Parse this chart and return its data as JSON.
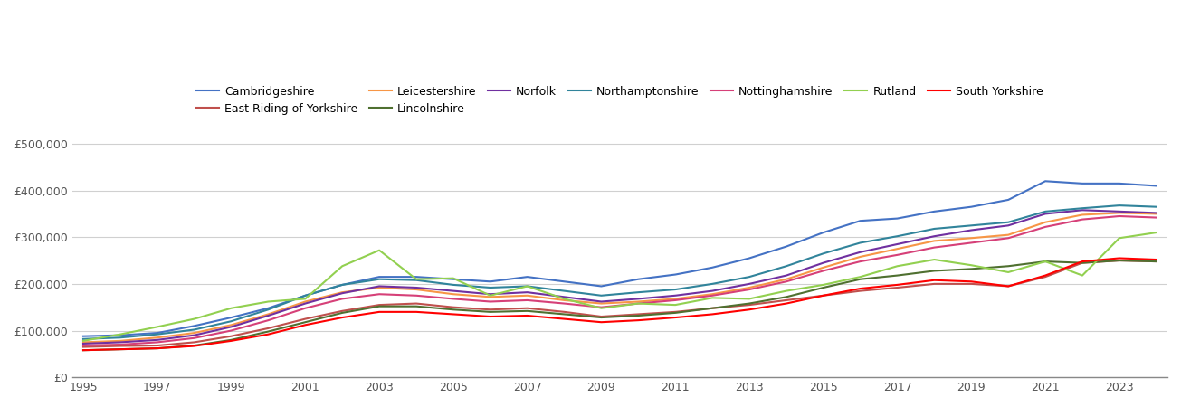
{
  "series": {
    "Cambridgeshire": {
      "color": "#4472C4",
      "values": [
        88000,
        90000,
        95000,
        110000,
        128000,
        148000,
        175000,
        198000,
        215000,
        215000,
        210000,
        205000,
        215000,
        205000,
        195000,
        210000,
        220000,
        235000,
        255000,
        280000,
        310000,
        335000,
        340000,
        355000,
        365000,
        380000,
        420000,
        415000,
        415000,
        410000
      ]
    },
    "East Riding of Yorkshire": {
      "color": "#C0504D",
      "values": [
        65000,
        67000,
        68000,
        75000,
        88000,
        105000,
        125000,
        142000,
        155000,
        158000,
        150000,
        145000,
        148000,
        140000,
        130000,
        135000,
        140000,
        148000,
        155000,
        165000,
        175000,
        185000,
        192000,
        200000,
        200000,
        195000,
        215000,
        245000,
        250000,
        248000
      ]
    },
    "Leicestershire": {
      "color": "#F79646",
      "values": [
        75000,
        78000,
        85000,
        95000,
        112000,
        135000,
        162000,
        182000,
        192000,
        188000,
        178000,
        172000,
        175000,
        165000,
        158000,
        162000,
        168000,
        178000,
        192000,
        210000,
        235000,
        258000,
        275000,
        292000,
        298000,
        305000,
        332000,
        348000,
        352000,
        350000
      ]
    },
    "Lincolnshire": {
      "color": "#4F7030",
      "values": [
        58000,
        60000,
        62000,
        68000,
        80000,
        98000,
        118000,
        138000,
        152000,
        152000,
        145000,
        140000,
        142000,
        135000,
        128000,
        132000,
        138000,
        148000,
        158000,
        172000,
        192000,
        210000,
        218000,
        228000,
        232000,
        238000,
        248000,
        245000,
        250000,
        248000
      ]
    },
    "Norfolk": {
      "color": "#7030A0",
      "values": [
        72000,
        75000,
        80000,
        90000,
        108000,
        132000,
        158000,
        180000,
        195000,
        192000,
        185000,
        178000,
        182000,
        172000,
        162000,
        168000,
        175000,
        185000,
        200000,
        218000,
        245000,
        268000,
        285000,
        302000,
        315000,
        325000,
        350000,
        358000,
        355000,
        352000
      ]
    },
    "Northamptonshire": {
      "color": "#31849B",
      "values": [
        82000,
        85000,
        92000,
        102000,
        120000,
        145000,
        175000,
        198000,
        210000,
        208000,
        198000,
        192000,
        195000,
        185000,
        175000,
        182000,
        188000,
        200000,
        215000,
        238000,
        265000,
        288000,
        302000,
        318000,
        325000,
        332000,
        355000,
        362000,
        368000,
        365000
      ]
    },
    "Nottinghamshire": {
      "color": "#D64078",
      "values": [
        68000,
        70000,
        75000,
        84000,
        100000,
        122000,
        148000,
        168000,
        178000,
        175000,
        168000,
        162000,
        165000,
        158000,
        150000,
        158000,
        165000,
        175000,
        188000,
        205000,
        228000,
        248000,
        262000,
        278000,
        288000,
        298000,
        322000,
        338000,
        345000,
        342000
      ]
    },
    "Rutland": {
      "color": "#92D050",
      "values": [
        78000,
        92000,
        108000,
        125000,
        148000,
        162000,
        168000,
        238000,
        272000,
        210000,
        212000,
        175000,
        195000,
        168000,
        148000,
        158000,
        155000,
        170000,
        168000,
        185000,
        198000,
        215000,
        238000,
        252000,
        240000,
        225000,
        248000,
        218000,
        298000,
        310000
      ]
    },
    "South Yorkshire": {
      "color": "#FF0000",
      "values": [
        58000,
        60000,
        62000,
        67000,
        78000,
        92000,
        112000,
        128000,
        140000,
        140000,
        135000,
        130000,
        132000,
        125000,
        118000,
        122000,
        128000,
        135000,
        145000,
        158000,
        175000,
        190000,
        198000,
        208000,
        205000,
        195000,
        218000,
        248000,
        255000,
        252000
      ]
    }
  },
  "years": [
    1995,
    1996,
    1997,
    1998,
    1999,
    2000,
    2001,
    2002,
    2003,
    2004,
    2005,
    2006,
    2007,
    2008,
    2009,
    2010,
    2011,
    2012,
    2013,
    2014,
    2015,
    2016,
    2017,
    2018,
    2019,
    2020,
    2021,
    2022,
    2023,
    2024
  ],
  "ylim": [
    0,
    530000
  ],
  "yticks": [
    0,
    100000,
    200000,
    300000,
    400000,
    500000
  ],
  "xticks": [
    1995,
    1997,
    1999,
    2001,
    2003,
    2005,
    2007,
    2009,
    2011,
    2013,
    2015,
    2017,
    2019,
    2021,
    2023
  ],
  "background_color": "#ffffff",
  "grid_color": "#d0d0d0",
  "legend_order": [
    "Cambridgeshire",
    "East Riding of Yorkshire",
    "Leicestershire",
    "Lincolnshire",
    "Norfolk",
    "Northamptonshire",
    "Nottinghamshire",
    "Rutland",
    "South Yorkshire"
  ],
  "legend_ncol_row1": 7,
  "linewidth": 1.5
}
